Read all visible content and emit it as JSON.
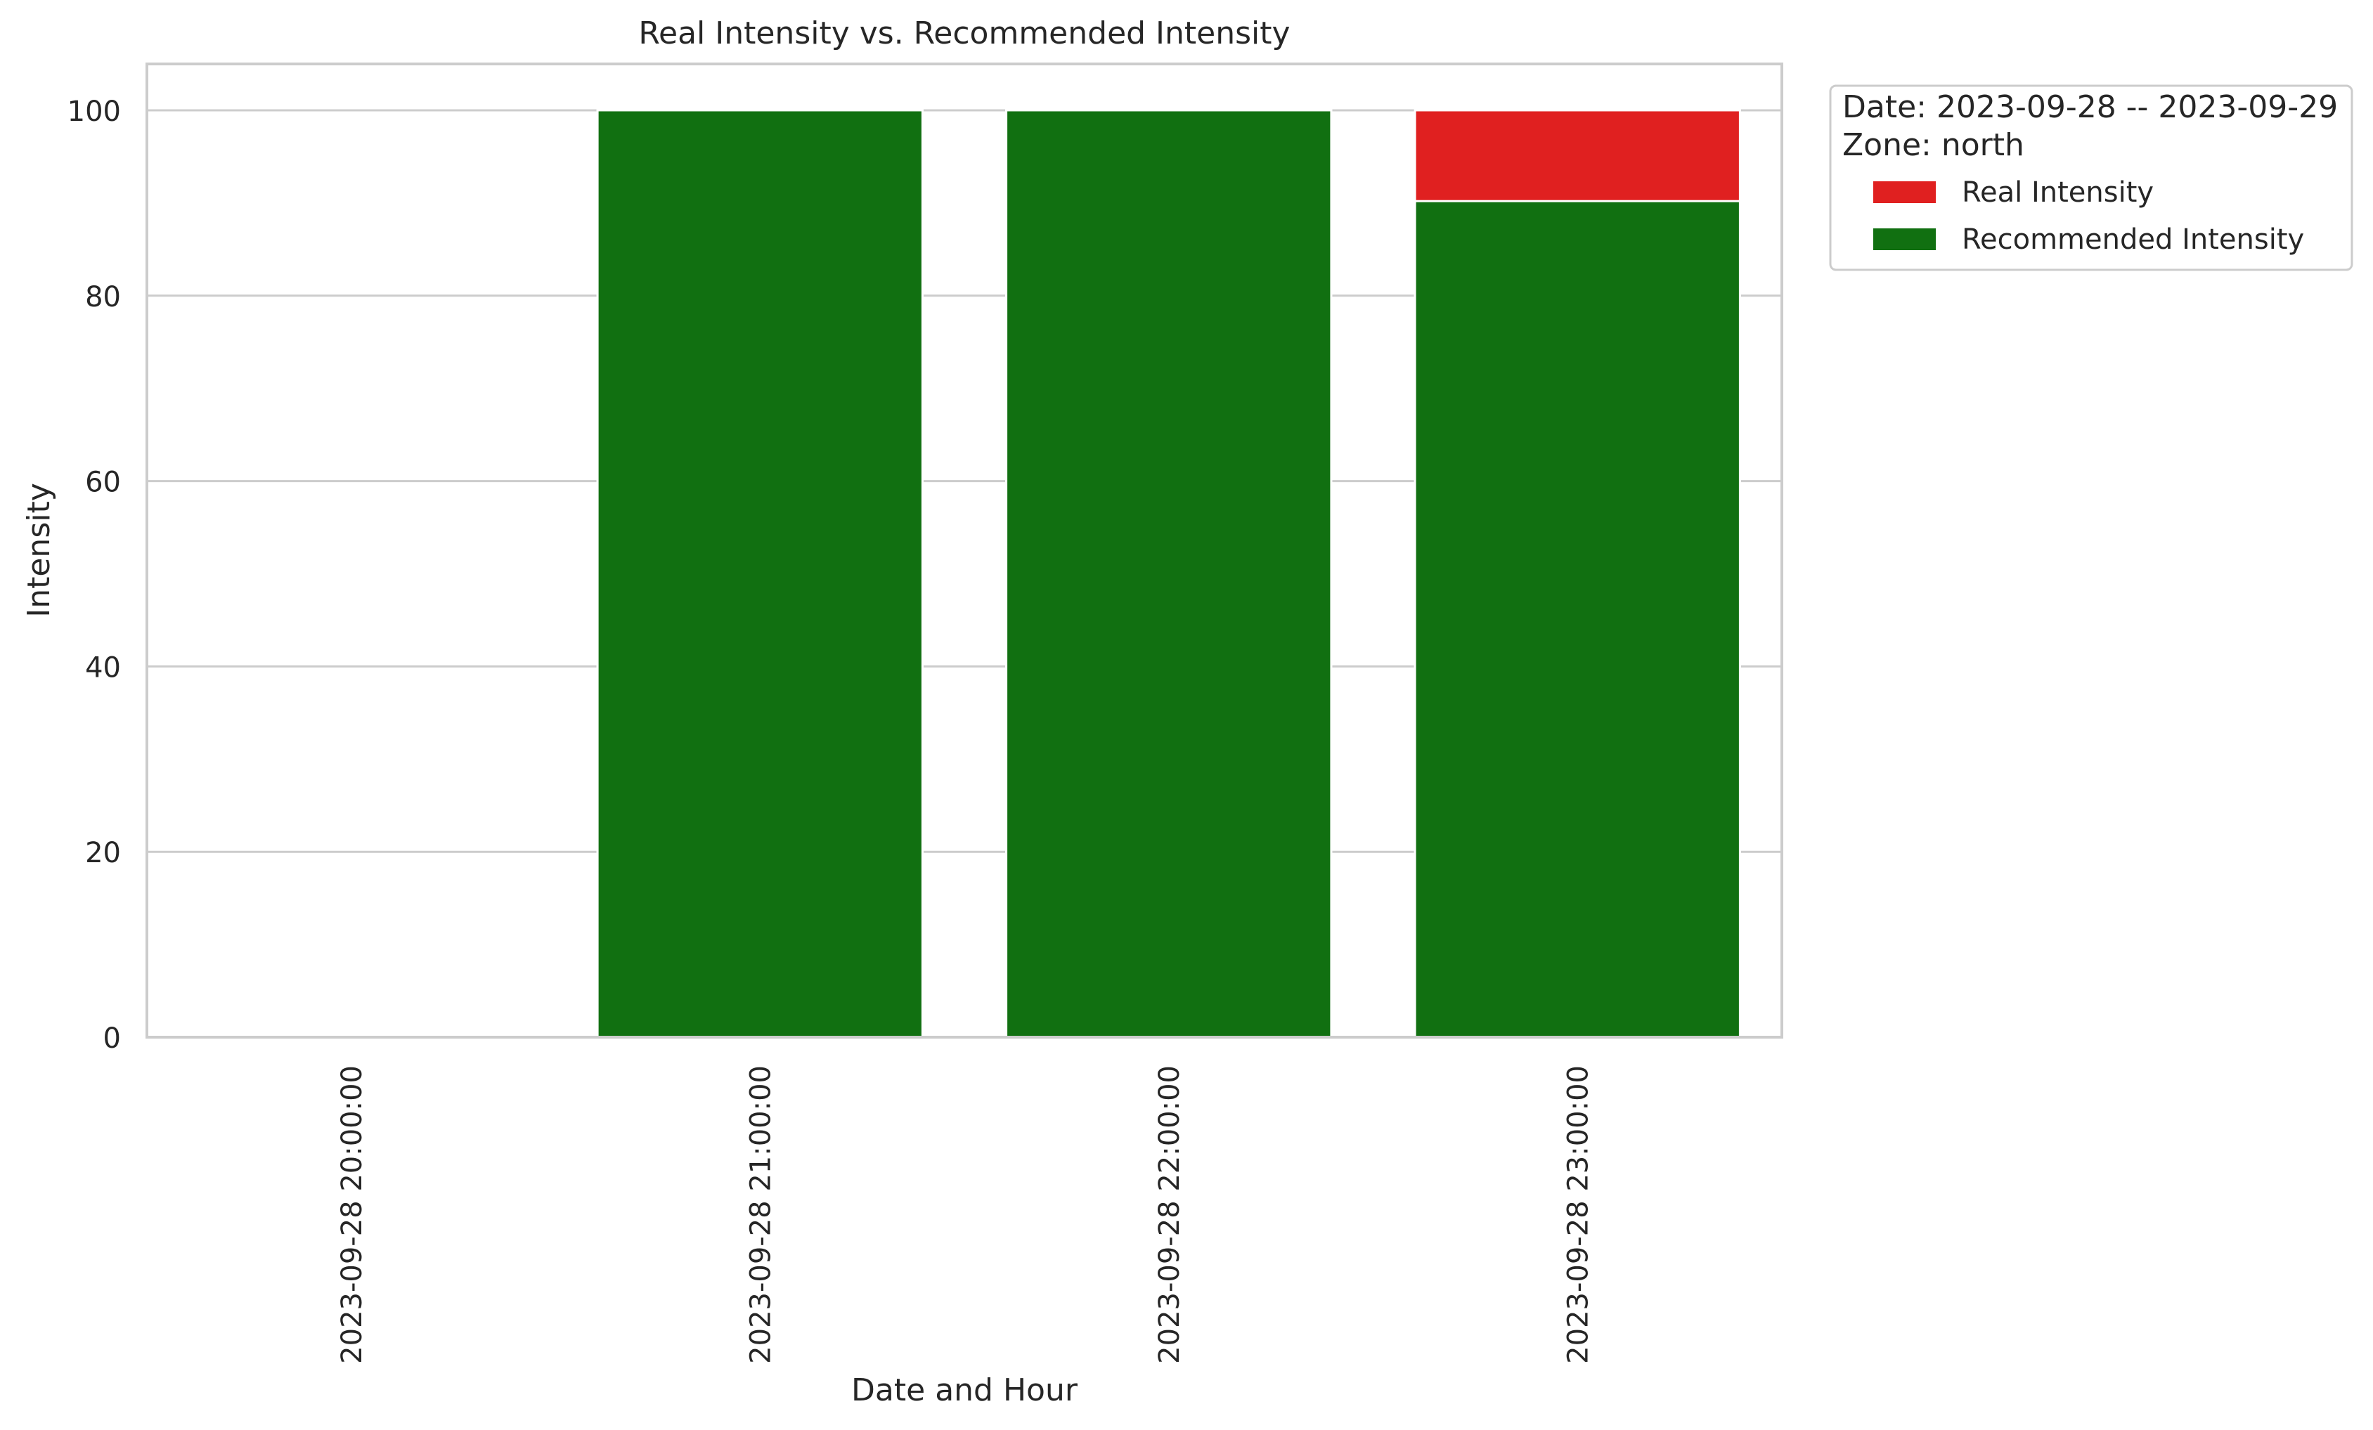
{
  "chart_data": {
    "type": "bar",
    "title": "Real Intensity vs. Recommended Intensity",
    "xlabel": "Date and Hour",
    "ylabel": "Intensity",
    "categories": [
      "2023-09-28 20:00:00",
      "2023-09-28 21:00:00",
      "2023-09-28 22:00:00",
      "2023-09-28 23:00:00"
    ],
    "series": [
      {
        "name": "Real Intensity",
        "color": "#e02020",
        "values": [
          0,
          100,
          100,
          100
        ]
      },
      {
        "name": "Recommended Intensity",
        "color": "#117011",
        "values": [
          0,
          100,
          100,
          90.2
        ]
      }
    ],
    "ylim": [
      0,
      105
    ],
    "yticks": [
      0,
      20,
      40,
      60,
      80,
      100
    ],
    "grid": true,
    "legend": {
      "placement": "outside-top-right",
      "title_lines": [
        "Date: 2023-09-28 -- 2023-09-29",
        "Zone: north"
      ]
    }
  }
}
